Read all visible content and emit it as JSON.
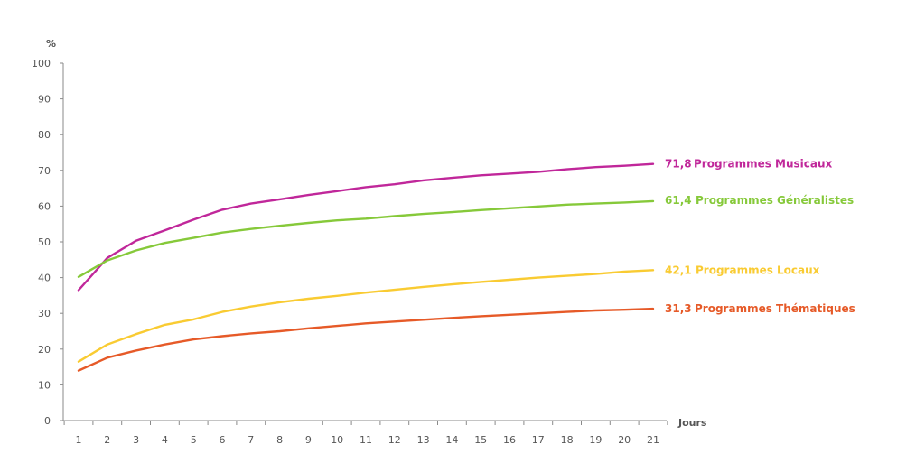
{
  "chart_data": {
    "type": "line",
    "ylabel": "%",
    "xlabel": "Jours",
    "x": [
      1,
      2,
      3,
      4,
      5,
      6,
      7,
      8,
      9,
      10,
      11,
      12,
      13,
      14,
      15,
      16,
      17,
      18,
      19,
      20,
      21
    ],
    "x_tick_labels": [
      "1",
      "2",
      "3",
      "4",
      "5",
      "6",
      "7",
      "8",
      "9",
      "10",
      "11",
      "12",
      "13",
      "14",
      "15",
      "16",
      "17",
      "18",
      "19",
      "20",
      "21"
    ],
    "ylim": [
      0,
      100
    ],
    "y_ticks": [
      0,
      10,
      20,
      30,
      40,
      50,
      60,
      70,
      80,
      90,
      100
    ],
    "y_tick_labels": [
      "0",
      "10",
      "20",
      "30",
      "40",
      "50",
      "60",
      "70",
      "80",
      "90",
      "100"
    ],
    "grid": false,
    "series": [
      {
        "name": "Programmes Musicaux",
        "end_label": "71,8",
        "color": "#c0279a",
        "values": [
          36.5,
          45.5,
          50.3,
          53.2,
          56.2,
          59.0,
          60.7,
          61.9,
          63.1,
          64.2,
          65.3,
          66.1,
          67.2,
          67.9,
          68.6,
          69.1,
          69.6,
          70.3,
          70.9,
          71.3,
          71.8
        ]
      },
      {
        "name": "Programmes Généralistes",
        "end_label": "61,4",
        "color": "#86c93a",
        "values": [
          40.2,
          44.8,
          47.6,
          49.7,
          51.1,
          52.6,
          53.6,
          54.5,
          55.3,
          56.0,
          56.5,
          57.2,
          57.8,
          58.3,
          58.9,
          59.4,
          59.9,
          60.4,
          60.7,
          61.0,
          61.4
        ]
      },
      {
        "name": "Programmes Locaux",
        "end_label": "42,1",
        "color": "#f9cb32",
        "values": [
          16.5,
          21.3,
          24.2,
          26.8,
          28.3,
          30.4,
          31.9,
          33.1,
          34.1,
          34.9,
          35.8,
          36.6,
          37.4,
          38.1,
          38.8,
          39.4,
          40.0,
          40.5,
          41.0,
          41.7,
          42.1
        ]
      },
      {
        "name": "Programmes Thématiques",
        "end_label": "31,3",
        "color": "#e65a28",
        "values": [
          14.0,
          17.6,
          19.6,
          21.3,
          22.7,
          23.6,
          24.4,
          25.0,
          25.8,
          26.5,
          27.2,
          27.7,
          28.2,
          28.7,
          29.2,
          29.6,
          30.0,
          30.4,
          30.8,
          31.0,
          31.3
        ]
      }
    ]
  }
}
